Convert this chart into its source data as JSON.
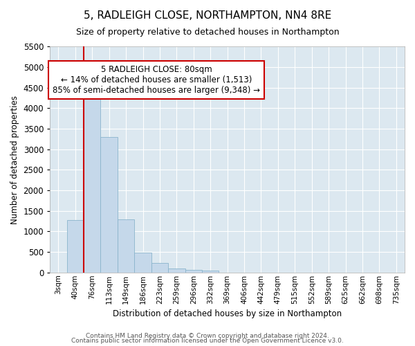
{
  "title": "5, RADLEIGH CLOSE, NORTHAMPTON, NN4 8RE",
  "subtitle": "Size of property relative to detached houses in Northampton",
  "xlabel": "Distribution of detached houses by size in Northampton",
  "ylabel": "Number of detached properties",
  "footnote1": "Contains HM Land Registry data © Crown copyright and database right 2024.",
  "footnote2": "Contains public sector information licensed under the Open Government Licence v3.0.",
  "annotation_line1": "5 RADLEIGH CLOSE: 80sqm",
  "annotation_line2": "← 14% of detached houses are smaller (1,513)",
  "annotation_line3": "85% of semi-detached houses are larger (9,348) →",
  "bar_color": "#c5d8ea",
  "bar_edge_color": "#8ab4cc",
  "plot_bg_color": "#dce8f0",
  "vline_color": "#cc0000",
  "annotation_box_edgecolor": "#cc0000",
  "ylim": [
    0,
    5500
  ],
  "yticks": [
    0,
    500,
    1000,
    1500,
    2000,
    2500,
    3000,
    3500,
    4000,
    4500,
    5000,
    5500
  ],
  "categories": [
    "3sqm",
    "40sqm",
    "76sqm",
    "113sqm",
    "149sqm",
    "186sqm",
    "223sqm",
    "259sqm",
    "296sqm",
    "332sqm",
    "369sqm",
    "406sqm",
    "442sqm",
    "479sqm",
    "515sqm",
    "552sqm",
    "589sqm",
    "625sqm",
    "662sqm",
    "698sqm",
    "735sqm"
  ],
  "values": [
    0,
    1270,
    4350,
    3300,
    1300,
    480,
    240,
    100,
    60,
    50,
    0,
    0,
    0,
    0,
    0,
    0,
    0,
    0,
    0,
    0,
    0
  ],
  "vline_x": 1.5
}
